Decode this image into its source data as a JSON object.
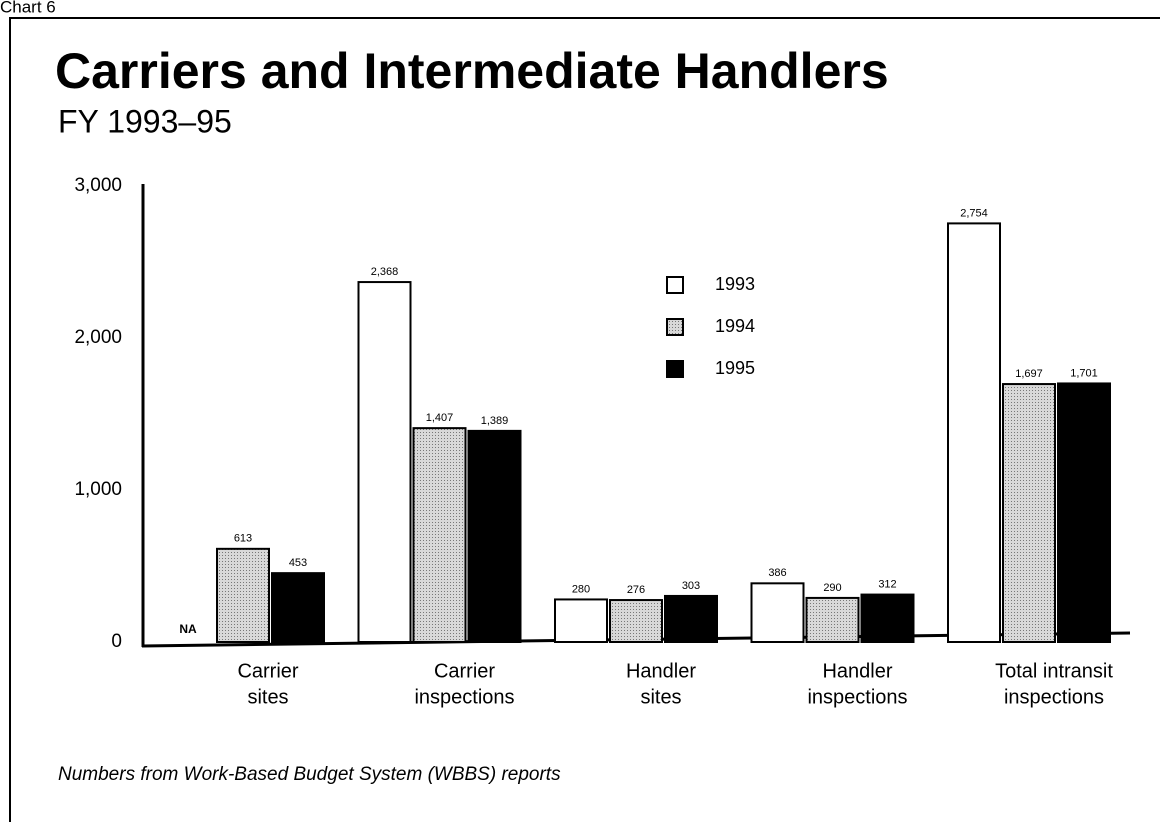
{
  "header": "Chart 6",
  "chart_data": {
    "type": "bar",
    "title": "Carriers and Intermediate Handlers",
    "subtitle": "FY 1993–95",
    "categories": [
      [
        "Carrier",
        "sites"
      ],
      [
        "Carrier",
        "inspections"
      ],
      [
        "Handler",
        "sites"
      ],
      [
        "Handler",
        "inspections"
      ],
      [
        "Total intransit",
        "inspections"
      ]
    ],
    "series": [
      {
        "name": "1993",
        "color": "#ffffff",
        "values": [
          null,
          2368,
          280,
          386,
          2754
        ],
        "value_labels": [
          "NA",
          "2,368",
          "280",
          "386",
          "2,754"
        ]
      },
      {
        "name": "1994",
        "color": "#c4c4c4",
        "values": [
          613,
          1407,
          276,
          290,
          1697
        ],
        "value_labels": [
          "613",
          "1,407",
          "276",
          "290",
          "1,697"
        ]
      },
      {
        "name": "1995",
        "color": "#000000",
        "values": [
          453,
          1389,
          303,
          312,
          1701
        ],
        "value_labels": [
          "453",
          "1,389",
          "303",
          "312",
          "1,701"
        ]
      }
    ],
    "ylim": [
      0,
      3000
    ],
    "yticks": [
      0,
      {
        "value": 1000,
        "label": "1,000"
      },
      {
        "value": 2000,
        "label": "2,000"
      },
      {
        "value": 3000,
        "label": "3,000"
      }
    ],
    "grid": false,
    "note": "Numbers from Work-Based Budget System (WBBS) reports"
  }
}
